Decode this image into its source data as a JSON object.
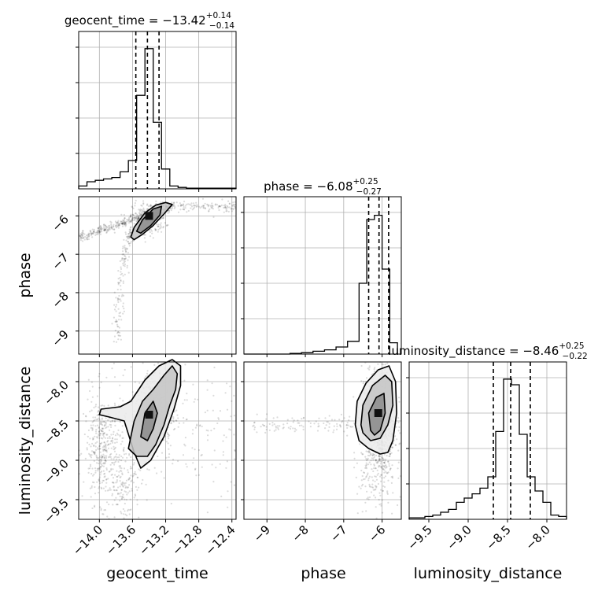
{
  "params": [
    {
      "name": "geocent_time",
      "median": "−13.42",
      "plus": "+0.14",
      "minus": "−0.14"
    },
    {
      "name": "phase",
      "median": "−6.08",
      "plus": "+0.25",
      "minus": "−0.27"
    },
    {
      "name": "luminosity_distance",
      "median": "−8.46",
      "plus": "+0.25",
      "minus": "−0.22"
    }
  ],
  "chart_data": {
    "type": "corner",
    "grid": true,
    "parameters": [
      "geocent_time",
      "phase",
      "luminosity_distance"
    ],
    "ranges": {
      "geocent_time": [
        -14.25,
        -12.35
      ],
      "phase": [
        -9.6,
        -5.5
      ],
      "luminosity_distance": [
        -9.75,
        -7.75
      ]
    },
    "ticks": {
      "geocent_time": [
        {
          "v": -14.0,
          "label": "−14.0"
        },
        {
          "v": -13.6,
          "label": "−13.6"
        },
        {
          "v": -13.2,
          "label": "−13.2"
        },
        {
          "v": -12.8,
          "label": "−12.8"
        },
        {
          "v": -12.4,
          "label": "−12.4"
        }
      ],
      "phase": [
        {
          "v": -9,
          "label": "−9"
        },
        {
          "v": -8,
          "label": "−8"
        },
        {
          "v": -7,
          "label": "−7"
        },
        {
          "v": -6,
          "label": "−6"
        }
      ],
      "luminosity_distance": [
        {
          "v": -9.5,
          "label": "−9.5"
        },
        {
          "v": -9.0,
          "label": "−9.0"
        },
        {
          "v": -8.5,
          "label": "−8.5"
        },
        {
          "v": -8.0,
          "label": "−8.0"
        }
      ]
    },
    "quantiles": {
      "geocent_time": [
        -13.56,
        -13.42,
        -13.28
      ],
      "phase": [
        -6.35,
        -6.08,
        -5.83
      ],
      "luminosity_distance": [
        -8.68,
        -8.46,
        -8.21
      ]
    },
    "histograms": {
      "geocent_time": {
        "edges": [
          -14.25,
          -14.15,
          -14.05,
          -13.95,
          -13.85,
          -13.75,
          -13.65,
          -13.55,
          -13.45,
          -13.35,
          -13.25,
          -13.15,
          -13.05,
          -12.95,
          -12.85,
          -12.75,
          -12.65,
          -12.55,
          -12.45,
          -12.35
        ],
        "counts": [
          0.02,
          0.05,
          0.06,
          0.07,
          0.08,
          0.12,
          0.2,
          0.66,
          0.99,
          0.47,
          0.14,
          0.02,
          0.01,
          0.005,
          0.005,
          0.005,
          0.005,
          0.005,
          0.005
        ]
      },
      "phase": {
        "edges": [
          -9.6,
          -9.3,
          -9.0,
          -8.7,
          -8.4,
          -8.1,
          -7.8,
          -7.5,
          -7.2,
          -6.9,
          -6.6,
          -6.4,
          -6.2,
          -6.0,
          -5.8,
          -5.6
        ],
        "counts": [
          0.0,
          0.0,
          0.0,
          0.0,
          0.005,
          0.01,
          0.02,
          0.03,
          0.05,
          0.09,
          0.5,
          0.95,
          0.98,
          0.6,
          0.08
        ]
      },
      "luminosity_distance": {
        "edges": [
          -9.75,
          -9.65,
          -9.55,
          -9.45,
          -9.35,
          -9.25,
          -9.15,
          -9.05,
          -8.95,
          -8.85,
          -8.75,
          -8.65,
          -8.55,
          -8.45,
          -8.35,
          -8.25,
          -8.15,
          -8.05,
          -7.95,
          -7.85,
          -7.75
        ],
        "counts": [
          0.01,
          0.01,
          0.02,
          0.03,
          0.05,
          0.07,
          0.12,
          0.15,
          0.18,
          0.22,
          0.3,
          0.62,
          0.99,
          0.95,
          0.6,
          0.3,
          0.2,
          0.12,
          0.03,
          0.02
        ]
      }
    },
    "pairs": [
      {
        "x": "geocent_time",
        "y": "phase",
        "peak": [
          -13.4,
          -6.0
        ],
        "contours": [
          [
            [
              -13.55,
              -6.4
            ],
            [
              -13.48,
              -6.1
            ],
            [
              -13.35,
              -5.82
            ],
            [
              -13.25,
              -5.75
            ],
            [
              -13.27,
              -5.98
            ],
            [
              -13.38,
              -6.25
            ],
            [
              -13.5,
              -6.45
            ]
          ],
          [
            [
              -13.62,
              -6.55
            ],
            [
              -13.58,
              -6.3
            ],
            [
              -13.45,
              -5.92
            ],
            [
              -13.32,
              -5.72
            ],
            [
              -13.2,
              -5.65
            ],
            [
              -13.12,
              -5.7
            ],
            [
              -13.22,
              -5.95
            ],
            [
              -13.35,
              -6.25
            ],
            [
              -13.48,
              -6.48
            ],
            [
              -13.58,
              -6.62
            ]
          ]
        ]
      },
      {
        "x": "geocent_time",
        "y": "luminosity_distance",
        "peak": [
          -13.4,
          -8.42
        ],
        "contours": [
          [
            [
              -13.5,
              -8.7
            ],
            [
              -13.45,
              -8.4
            ],
            [
              -13.35,
              -8.25
            ],
            [
              -13.3,
              -8.4
            ],
            [
              -13.35,
              -8.6
            ],
            [
              -13.42,
              -8.75
            ]
          ],
          [
            [
              -13.65,
              -8.85
            ],
            [
              -13.58,
              -8.5
            ],
            [
              -13.48,
              -8.25
            ],
            [
              -13.35,
              -8.1
            ],
            [
              -13.22,
              -7.92
            ],
            [
              -13.12,
              -7.8
            ],
            [
              -13.06,
              -7.9
            ],
            [
              -13.08,
              -8.1
            ],
            [
              -13.15,
              -8.3
            ],
            [
              -13.22,
              -8.55
            ],
            [
              -13.32,
              -8.8
            ],
            [
              -13.42,
              -8.95
            ],
            [
              -13.55,
              -8.95
            ]
          ],
          [
            [
              -13.98,
              -8.35
            ],
            [
              -13.75,
              -8.32
            ],
            [
              -13.62,
              -8.25
            ],
            [
              -13.45,
              -7.98
            ],
            [
              -13.28,
              -7.8
            ],
            [
              -13.12,
              -7.72
            ],
            [
              -13.02,
              -7.8
            ],
            [
              -13.02,
              -8.05
            ],
            [
              -13.1,
              -8.35
            ],
            [
              -13.22,
              -8.7
            ],
            [
              -13.38,
              -9.0
            ],
            [
              -13.5,
              -9.1
            ],
            [
              -13.58,
              -8.9
            ],
            [
              -13.7,
              -8.5
            ],
            [
              -13.88,
              -8.45
            ],
            [
              -14.0,
              -8.42
            ]
          ]
        ]
      },
      {
        "x": "phase",
        "y": "luminosity_distance",
        "peak": [
          -6.1,
          -8.4
        ],
        "contours": [
          [
            [
              -6.3,
              -8.62
            ],
            [
              -6.35,
              -8.4
            ],
            [
              -6.15,
              -8.2
            ],
            [
              -5.95,
              -8.15
            ],
            [
              -5.92,
              -8.4
            ],
            [
              -6.05,
              -8.62
            ],
            [
              -6.2,
              -8.68
            ]
          ],
          [
            [
              -6.55,
              -8.55
            ],
            [
              -6.5,
              -8.3
            ],
            [
              -6.25,
              -8.05
            ],
            [
              -5.92,
              -7.92
            ],
            [
              -5.75,
              -8.0
            ],
            [
              -5.72,
              -8.3
            ],
            [
              -5.85,
              -8.55
            ],
            [
              -6.05,
              -8.72
            ],
            [
              -6.3,
              -8.75
            ],
            [
              -6.5,
              -8.65
            ]
          ],
          [
            [
              -6.7,
              -8.55
            ],
            [
              -6.65,
              -8.25
            ],
            [
              -6.42,
              -8.02
            ],
            [
              -6.1,
              -7.85
            ],
            [
              -5.82,
              -7.8
            ],
            [
              -5.65,
              -8.0
            ],
            [
              -5.62,
              -8.4
            ],
            [
              -5.72,
              -8.75
            ],
            [
              -5.85,
              -8.9
            ],
            [
              -6.05,
              -8.92
            ],
            [
              -6.35,
              -8.85
            ],
            [
              -6.6,
              -8.75
            ]
          ]
        ]
      }
    ]
  }
}
